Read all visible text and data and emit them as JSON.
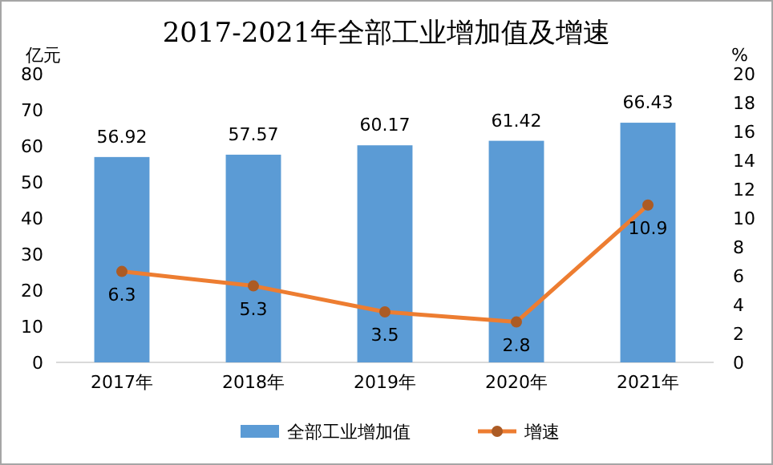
{
  "chart_data": {
    "type": "bar",
    "title": "2017-2021年全部工业增加值及增速",
    "ylabel": "亿元",
    "y2label": "%",
    "categories": [
      "2017年",
      "2018年",
      "2019年",
      "2020年",
      "2021年"
    ],
    "series": [
      {
        "name": "全部工业增加值",
        "color": "#5b9bd5",
        "values": [
          56.92,
          57.57,
          60.17,
          61.42,
          66.43
        ]
      },
      {
        "name": "增速",
        "type": "line",
        "axis": "y2",
        "color": "#ed7d31",
        "values": [
          6.3,
          5.3,
          3.5,
          2.8,
          10.9
        ]
      }
    ],
    "ylim": [
      0,
      80
    ],
    "yticks": [
      0,
      10,
      20,
      30,
      40,
      50,
      60,
      70,
      80
    ],
    "y2lim": [
      0,
      20
    ],
    "y2ticks": [
      0,
      2,
      4,
      6,
      8,
      10,
      12,
      14,
      16,
      18,
      20
    ],
    "data_labels": true,
    "legend": "bottom",
    "marker": "circle",
    "line_style": "solid"
  }
}
